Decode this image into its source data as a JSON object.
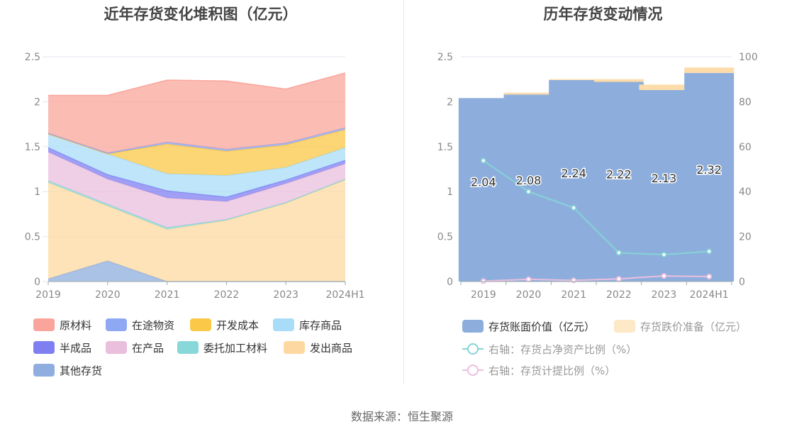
{
  "left_chart": {
    "title": "近年存货变化堆积图（亿元）",
    "legend": [
      {
        "name": "原材料",
        "color": "#f9a59b"
      },
      {
        "name": "在途物资",
        "color": "#8fa8f4"
      },
      {
        "name": "开发成本",
        "color": "#fbc847"
      },
      {
        "name": "库存商品",
        "color": "#a9dcf8"
      },
      {
        "name": "半成品",
        "color": "#7f7ff2"
      },
      {
        "name": "在产品",
        "color": "#eabfdd"
      },
      {
        "name": "委托加工材料",
        "color": "#88d8da"
      },
      {
        "name": "发出商品",
        "color": "#fdd9a1"
      },
      {
        "name": "其他存货",
        "color": "#8faedf"
      }
    ]
  },
  "right_chart": {
    "title": "历年存货变动情况",
    "legend": [
      {
        "name": "存货账面价值（亿元）",
        "color": "#8daedc"
      },
      {
        "name": "存货跌价准备（亿元）",
        "color": "#fde8c8"
      },
      {
        "name": "右轴：存货占净资产比例（%）",
        "color": "#86d3d6"
      },
      {
        "name": "右轴：存货计提比例（%）",
        "color": "#ebbfdf"
      }
    ]
  },
  "chart_data": [
    {
      "type": "area",
      "stacked": true,
      "title": "近年存货变化堆积图（亿元）",
      "categories": [
        "2019",
        "2020",
        "2021",
        "2022",
        "2023",
        "2024H1"
      ],
      "ylim": [
        0,
        2.5
      ],
      "yticks": [
        "0",
        "0.5",
        "1",
        "1.5",
        "2",
        "2.5"
      ],
      "series": [
        {
          "name": "其他存货",
          "values": [
            0.03,
            0.23,
            0.0,
            0.0,
            0.0,
            0.0
          ]
        },
        {
          "name": "发出商品",
          "values": [
            1.07,
            0.61,
            0.58,
            0.68,
            0.87,
            1.13
          ]
        },
        {
          "name": "委托加工材料",
          "values": [
            0.02,
            0.02,
            0.02,
            0.01,
            0.01,
            0.01
          ]
        },
        {
          "name": "在产品",
          "values": [
            0.32,
            0.28,
            0.33,
            0.2,
            0.21,
            0.17
          ]
        },
        {
          "name": "半成品",
          "values": [
            0.05,
            0.05,
            0.08,
            0.05,
            0.04,
            0.04
          ]
        },
        {
          "name": "库存商品",
          "values": [
            0.15,
            0.23,
            0.19,
            0.24,
            0.14,
            0.14
          ]
        },
        {
          "name": "开发成本",
          "values": [
            0.0,
            0.0,
            0.33,
            0.27,
            0.25,
            0.2
          ]
        },
        {
          "name": "在途物资",
          "values": [
            0.01,
            0.01,
            0.02,
            0.02,
            0.02,
            0.02
          ]
        },
        {
          "name": "原材料",
          "values": [
            0.42,
            0.64,
            0.69,
            0.76,
            0.6,
            0.61
          ]
        }
      ]
    },
    {
      "type": "bar",
      "stacked": true,
      "title": "历年存货变动情况",
      "categories": [
        "2019",
        "2020",
        "2021",
        "2022",
        "2023",
        "2024H1"
      ],
      "ylim": [
        0,
        2.5
      ],
      "yticks": [
        "0",
        "0.5",
        "1",
        "1.5",
        "2",
        "2.5"
      ],
      "y2lim": [
        0,
        100
      ],
      "y2ticks": [
        "0",
        "20",
        "40",
        "60",
        "80",
        "100"
      ],
      "series": [
        {
          "name": "存货账面价值（亿元）",
          "values": [
            2.04,
            2.08,
            2.24,
            2.22,
            2.13,
            2.32
          ],
          "labels": [
            "2.04",
            "2.08",
            "2.24",
            "2.22",
            "2.13",
            "2.32"
          ]
        },
        {
          "name": "存货跌价准备（亿元）",
          "values": [
            0.0,
            0.02,
            0.01,
            0.03,
            0.06,
            0.06
          ]
        }
      ],
      "line_series": [
        {
          "name": "右轴：存货占净资产比例（%）",
          "axis": "right",
          "values": [
            53.8,
            40.0,
            32.8,
            12.8,
            12.0,
            13.4
          ]
        },
        {
          "name": "右轴：存货计提比例（%）",
          "axis": "right",
          "values": [
            0.2,
            1.0,
            0.5,
            1.2,
            2.5,
            2.2
          ]
        }
      ]
    }
  ],
  "source": "数据来源：恒生聚源"
}
